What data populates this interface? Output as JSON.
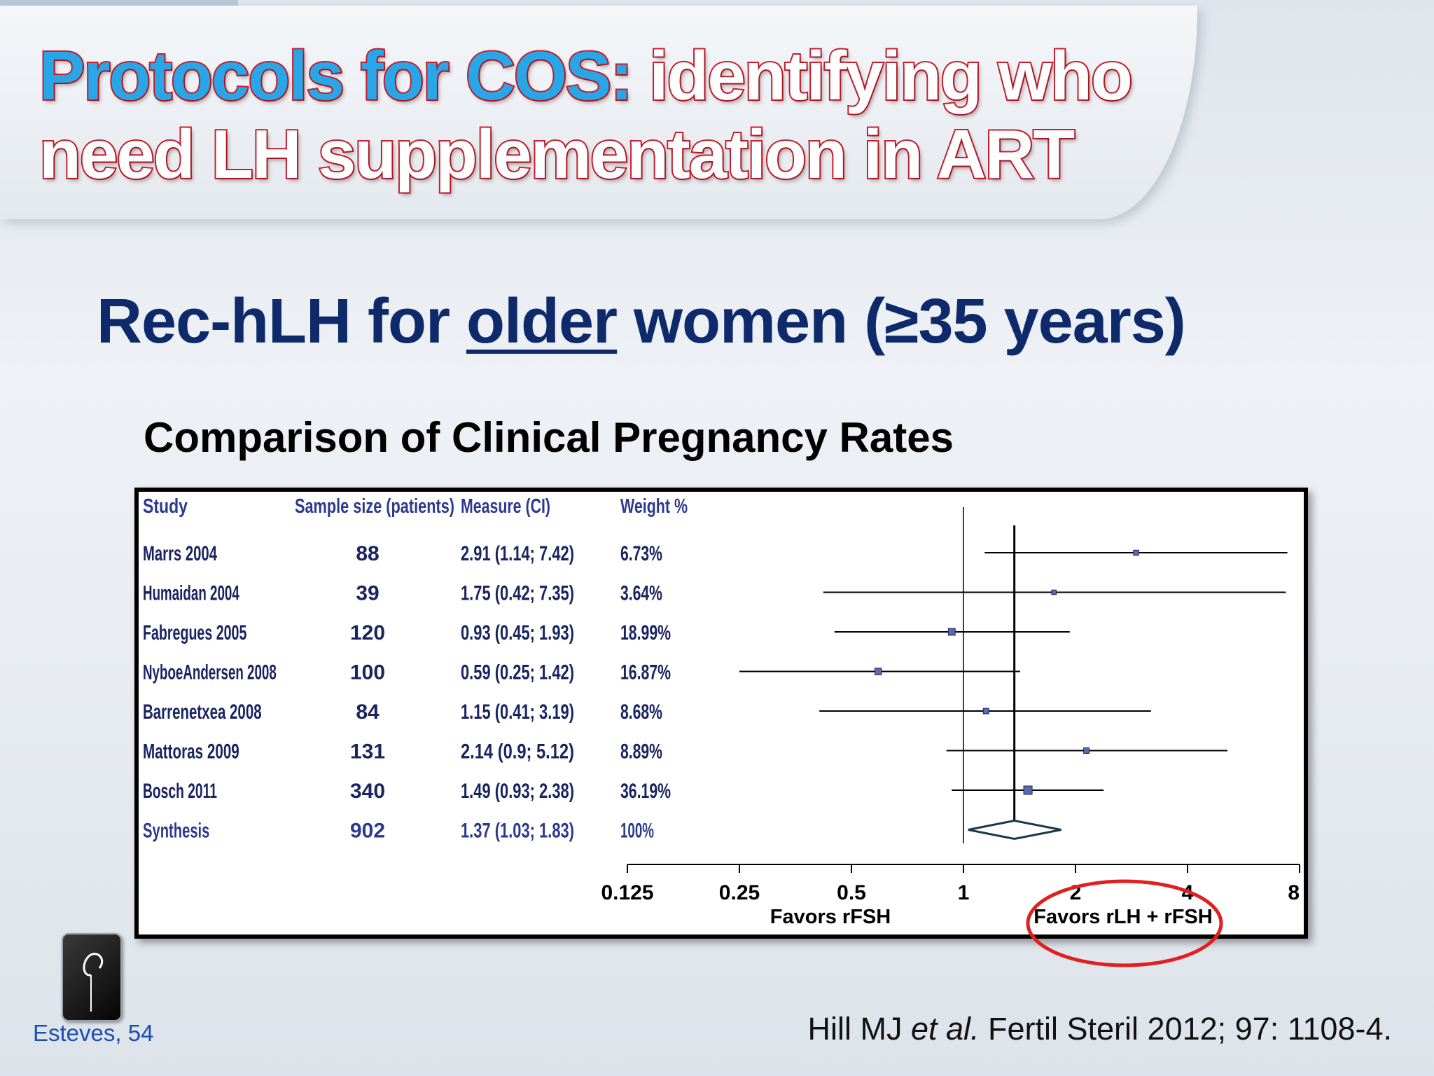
{
  "slide": {
    "title_part1": "Protocols for COS:",
    "title_part2": " identifying who",
    "title_line2": "need LH supplementation in ART",
    "subtitle_pre": "Rec-hLH for ",
    "subtitle_underlined": "older",
    "subtitle_post": " women (≥35 years)",
    "chart_heading": "Comparison of Clinical Pregnancy Rates",
    "footer_left": "Esteves, 54",
    "footer_ref_pre": "Hill MJ ",
    "footer_ref_italic": "et al.",
    "footer_ref_post": " Fertil Steril 2012; 97: 1108-4."
  },
  "colors": {
    "title_blue": "#29a6e8",
    "title_outline": "#c8202e",
    "subtitle_navy": "#0e2a6b",
    "table_text": "#1a2460",
    "synthesis_text": "#2b3a8c",
    "marker_fill": "#5a6aa8",
    "circle_red": "#e02020"
  },
  "chart_data": {
    "type": "forest",
    "x_scale": "log2",
    "xlim": [
      0.125,
      8
    ],
    "xticks": [
      "0.125",
      "0.25",
      "0.5",
      "1",
      "2",
      "4",
      "8"
    ],
    "xtick_values": [
      0.125,
      0.25,
      0.5,
      1,
      2,
      4,
      8
    ],
    "favors_left": "Favors rFSH",
    "favors_right": "Favors rLH + rFSH",
    "columns": [
      "Study",
      "Sample size (patients)",
      "Measure (CI)",
      "Weight %"
    ],
    "null_line": 1,
    "summary_line": 1.37,
    "studies": [
      {
        "study": "Marrs 2004",
        "n": "88",
        "measure": "2.91 (1.14; 7.42)",
        "weight": "6.73%",
        "est": 2.91,
        "lo": 1.14,
        "hi": 7.42
      },
      {
        "study": "Humaidan 2004",
        "n": "39",
        "measure": "1.75 (0.42; 7.35)",
        "weight": "3.64%",
        "est": 1.75,
        "lo": 0.42,
        "hi": 7.35
      },
      {
        "study": "Fabregues 2005",
        "n": "120",
        "measure": "0.93 (0.45; 1.93)",
        "weight": "18.99%",
        "est": 0.93,
        "lo": 0.45,
        "hi": 1.93
      },
      {
        "study": "NyboeAndersen 2008",
        "n": "100",
        "measure": "0.59 (0.25; 1.42)",
        "weight": "16.87%",
        "est": 0.59,
        "lo": 0.25,
        "hi": 1.42
      },
      {
        "study": "Barrenetxea 2008",
        "n": "84",
        "measure": "1.15 (0.41; 3.19)",
        "weight": "8.68%",
        "est": 1.15,
        "lo": 0.41,
        "hi": 3.19
      },
      {
        "study": "Mattoras 2009",
        "n": "131",
        "measure": "2.14 (0.9; 5.12)",
        "weight": "8.89%",
        "est": 2.14,
        "lo": 0.9,
        "hi": 5.12
      },
      {
        "study": "Bosch 2011",
        "n": "340",
        "measure": "1.49 (0.93; 2.38)",
        "weight": "36.19%",
        "est": 1.49,
        "lo": 0.93,
        "hi": 2.38
      }
    ],
    "synthesis": {
      "study": "Synthesis",
      "n": "902",
      "measure": "1.37 (1.03; 1.83)",
      "weight": "100%",
      "est": 1.37,
      "lo": 1.03,
      "hi": 1.83
    }
  }
}
